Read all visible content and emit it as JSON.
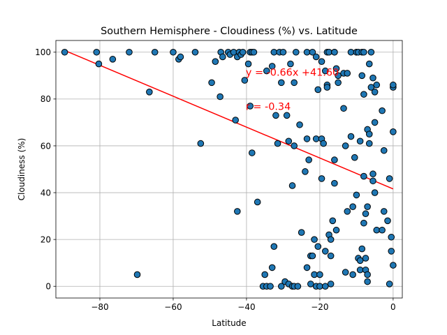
{
  "chart_data": {
    "type": "scatter",
    "title": "Southern Hemisphere - Cloudiness (%) vs. Latitude",
    "xlabel": "Latitude",
    "ylabel": "Cloudiness (%)",
    "xlim": [
      -92,
      2.5
    ],
    "ylim": [
      -5,
      105
    ],
    "xticks": [
      -80,
      -60,
      -40,
      -20,
      0
    ],
    "yticks": [
      0,
      20,
      40,
      60,
      80,
      100
    ],
    "grid": true,
    "point_color": "#1f77b4",
    "point_edge_color": "#000000",
    "regression": {
      "slope": -0.66,
      "intercept": 41.6,
      "color": "#ff0000",
      "x_range": [
        -89.6,
        0
      ]
    },
    "annotations": [
      {
        "text": "y = -0.66x +41.60",
        "x": -40.2,
        "y": 90,
        "color": "#ff0000"
      },
      {
        "text": "r = -0.34",
        "x": -40.2,
        "y": 75.4,
        "color": "#ff0000"
      }
    ],
    "points": [
      [
        -89.6,
        100
      ],
      [
        -80.9,
        100
      ],
      [
        -80.3,
        95
      ],
      [
        -76.5,
        97
      ],
      [
        -72,
        100
      ],
      [
        -69.8,
        5
      ],
      [
        -66.5,
        83
      ],
      [
        -65,
        100
      ],
      [
        -60,
        100
      ],
      [
        -58.5,
        97
      ],
      [
        -58,
        98
      ],
      [
        -54,
        100
      ],
      [
        -52.5,
        61
      ],
      [
        -49.5,
        87
      ],
      [
        -48.5,
        96
      ],
      [
        -47.2,
        81
      ],
      [
        -47,
        100
      ],
      [
        -46.5,
        98
      ],
      [
        -45,
        100
      ],
      [
        -44.5,
        99
      ],
      [
        -43.5,
        100
      ],
      [
        -43,
        71
      ],
      [
        -42.5,
        32
      ],
      [
        -42.5,
        98
      ],
      [
        -42,
        100
      ],
      [
        -41.5,
        99
      ],
      [
        -41,
        100
      ],
      [
        -40.5,
        88
      ],
      [
        -39.5,
        95
      ],
      [
        -39,
        77
      ],
      [
        -39,
        100
      ],
      [
        -38.5,
        100
      ],
      [
        -38.5,
        57
      ],
      [
        -38,
        100
      ],
      [
        -37,
        36
      ],
      [
        -35.5,
        0
      ],
      [
        -35,
        5
      ],
      [
        -34.5,
        0
      ],
      [
        -34.5,
        92
      ],
      [
        -33.5,
        0
      ],
      [
        -33,
        94
      ],
      [
        -33,
        8
      ],
      [
        -32.5,
        100
      ],
      [
        -32.5,
        17
      ],
      [
        -32,
        73
      ],
      [
        -31.5,
        61
      ],
      [
        -31,
        100
      ],
      [
        -30.5,
        87
      ],
      [
        -30.5,
        0
      ],
      [
        -30,
        100
      ],
      [
        -29.5,
        2
      ],
      [
        -29,
        73
      ],
      [
        -28.5,
        1
      ],
      [
        -28.5,
        62
      ],
      [
        -28,
        95
      ],
      [
        -27.5,
        0
      ],
      [
        -27.5,
        43
      ],
      [
        -27,
        0
      ],
      [
        -27,
        87
      ],
      [
        -27,
        60
      ],
      [
        -26.5,
        100
      ],
      [
        -26,
        0
      ],
      [
        -25.5,
        69
      ],
      [
        -25,
        23
      ],
      [
        -24,
        49
      ],
      [
        -23.5,
        100
      ],
      [
        -23.5,
        63
      ],
      [
        -23.5,
        8
      ],
      [
        -23,
        54
      ],
      [
        -22.5,
        1
      ],
      [
        -22.5,
        13
      ],
      [
        -22,
        100
      ],
      [
        -22,
        13
      ],
      [
        -21.5,
        20
      ],
      [
        -21.5,
        5
      ],
      [
        -21,
        63
      ],
      [
        -21,
        0
      ],
      [
        -21,
        98
      ],
      [
        -20.5,
        84
      ],
      [
        -20.5,
        17
      ],
      [
        -20,
        5
      ],
      [
        -20,
        0
      ],
      [
        -19.5,
        63
      ],
      [
        -19.5,
        46
      ],
      [
        -19.5,
        96
      ],
      [
        -19,
        61
      ],
      [
        -18.5,
        15
      ],
      [
        -18.5,
        0
      ],
      [
        -18.5,
        92
      ],
      [
        -18,
        86
      ],
      [
        -18,
        85
      ],
      [
        -18,
        100
      ],
      [
        -17.5,
        100
      ],
      [
        -17.5,
        22
      ],
      [
        -17,
        1
      ],
      [
        -17,
        13
      ],
      [
        -17,
        20
      ],
      [
        -16.5,
        28
      ],
      [
        -16,
        100
      ],
      [
        -16,
        54
      ],
      [
        -16,
        44
      ],
      [
        -16,
        100
      ],
      [
        -15.5,
        93
      ],
      [
        -15.5,
        24
      ],
      [
        -15,
        87
      ],
      [
        -15,
        90
      ],
      [
        -13.5,
        91
      ],
      [
        -13.5,
        76
      ],
      [
        -13,
        60
      ],
      [
        -13,
        6
      ],
      [
        -12.5,
        91
      ],
      [
        -12.5,
        32
      ],
      [
        -11.5,
        64
      ],
      [
        -11.5,
        100
      ],
      [
        -11,
        34
      ],
      [
        -11,
        5
      ],
      [
        -10.5,
        55
      ],
      [
        -10,
        100
      ],
      [
        -10,
        39
      ],
      [
        -9.5,
        100
      ],
      [
        -9.5,
        12
      ],
      [
        -9,
        11
      ],
      [
        -9,
        7
      ],
      [
        -9,
        62
      ],
      [
        -8.5,
        100
      ],
      [
        -8.5,
        16
      ],
      [
        -8.5,
        90
      ],
      [
        -8,
        100
      ],
      [
        -8,
        27
      ],
      [
        -8,
        82
      ],
      [
        -8,
        47
      ],
      [
        -7.5,
        31
      ],
      [
        -7.5,
        7
      ],
      [
        -7.5,
        12
      ],
      [
        -7,
        34
      ],
      [
        -7,
        5
      ],
      [
        -7,
        2
      ],
      [
        -7,
        67
      ],
      [
        -6.5,
        61
      ],
      [
        -6.5,
        65
      ],
      [
        -6.5,
        95
      ],
      [
        -6,
        85
      ],
      [
        -6,
        100
      ],
      [
        -5.5,
        89
      ],
      [
        -5.5,
        45
      ],
      [
        -5.5,
        48
      ],
      [
        -5,
        70
      ],
      [
        -5,
        40
      ],
      [
        -5,
        83
      ],
      [
        -4.5,
        86
      ],
      [
        -4.5,
        24
      ],
      [
        -3,
        75
      ],
      [
        -3,
        24
      ],
      [
        -2.5,
        32
      ],
      [
        -2.5,
        58
      ],
      [
        -1.5,
        28
      ],
      [
        -1,
        1
      ],
      [
        -1,
        46
      ],
      [
        -0.5,
        21
      ],
      [
        -0.5,
        15
      ],
      [
        0,
        85
      ],
      [
        0,
        86
      ],
      [
        0,
        66
      ],
      [
        0,
        9
      ]
    ]
  }
}
